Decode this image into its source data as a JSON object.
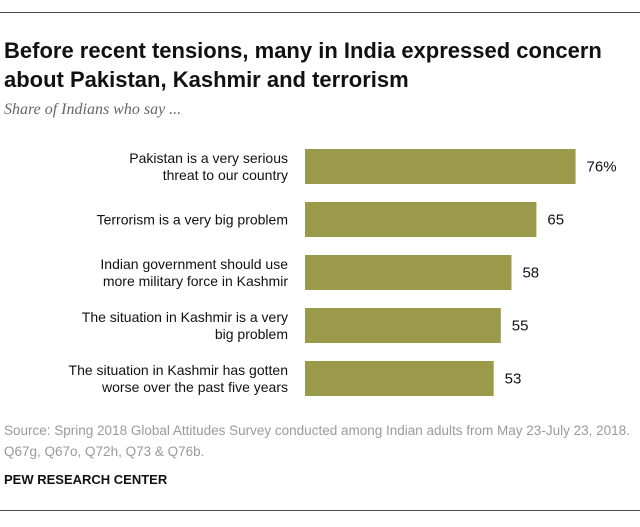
{
  "title": "Before recent tensions, many in India expressed concern about Pakistan, Kashmir and terrorism",
  "subtitle": "Share of Indians who say ...",
  "source": "Source: Spring 2018 Global Attitudes Survey conducted among Indian adults from May 23-July 23, 2018. Q67g, Q67o, Q72h, Q73 & Q76b.",
  "credit": "PEW RESEARCH CENTER",
  "colors": {
    "bar": "#9a9a4a"
  },
  "chart_data": {
    "type": "bar",
    "orientation": "horizontal",
    "categories": [
      [
        "Pakistan is a very serious",
        "threat to our country"
      ],
      [
        "Terrorism is a very big problem"
      ],
      [
        "Indian government should use",
        "more military force in Kashmir"
      ],
      [
        "The situation in Kashmir is a very",
        "big problem"
      ],
      [
        "The situation in Kashmir has gotten",
        "worse over the past five years"
      ]
    ],
    "values": [
      76,
      65,
      58,
      55,
      53
    ],
    "value_labels": [
      "76%",
      "65",
      "58",
      "55",
      "53"
    ],
    "xlim": [
      0,
      100
    ],
    "grid": false,
    "legend": "none"
  }
}
